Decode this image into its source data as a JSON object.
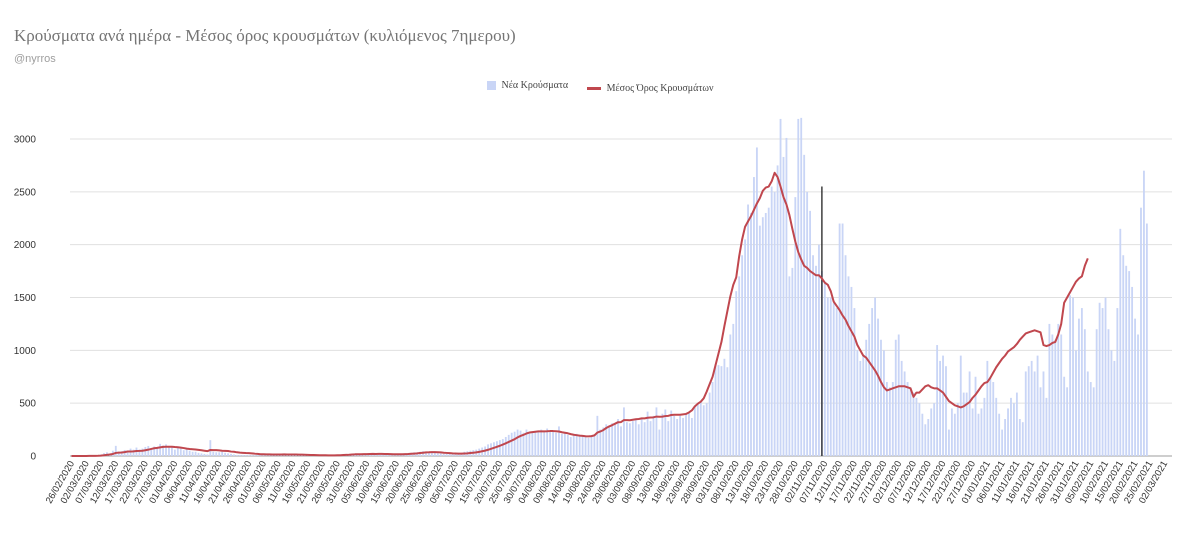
{
  "header": {
    "title": "Κρούσματα ανά ημέρα - Μέσος όρος κρουσμάτων (κυλιόμενος 7ημερου)",
    "subtitle": "@nyrros"
  },
  "colors": {
    "bars": "#c9d5f6",
    "line": "#c0474e",
    "grid": "#e0e0e0",
    "marker": "#222222"
  },
  "chart_data": {
    "type": "bar",
    "title": "Κρούσματα ανά ημέρα - Μέσος όρος κρουσμάτων (κυλιόμενος 7ημερου)",
    "legend_position": "top-center",
    "grid": true,
    "ylim": [
      0,
      3000
    ],
    "yticks": [
      0,
      500,
      1000,
      1500,
      2000,
      2500,
      3000
    ],
    "start_date": "2020-02-26",
    "end_date": "2021-03-04",
    "vertical_marker_date": "2020-11-06",
    "xtick_labels": [
      "26/02/2020",
      "02/03/2020",
      "07/03/2020",
      "12/03/2020",
      "17/03/2020",
      "22/03/2020",
      "27/03/2020",
      "01/04/2020",
      "06/04/2020",
      "11/04/2020",
      "16/04/2020",
      "21/04/2020",
      "26/04/2020",
      "01/05/2020",
      "06/05/2020",
      "11/05/2020",
      "16/05/2020",
      "21/05/2020",
      "26/05/2020",
      "31/05/2020",
      "05/06/2020",
      "10/06/2020",
      "15/06/2020",
      "20/06/2020",
      "25/06/2020",
      "30/06/2020",
      "05/07/2020",
      "10/07/2020",
      "15/07/2020",
      "20/07/2020",
      "25/07/2020",
      "30/07/2020",
      "04/08/2020",
      "09/08/2020",
      "14/08/2020",
      "19/08/2020",
      "24/08/2020",
      "29/08/2020",
      "03/09/2020",
      "08/09/2020",
      "13/09/2020",
      "18/09/2020",
      "23/09/2020",
      "28/09/2020",
      "03/10/2020",
      "08/10/2020",
      "13/10/2020",
      "18/10/2020",
      "23/10/2020",
      "28/10/2020",
      "02/11/2020",
      "07/11/2020",
      "12/11/2020",
      "17/11/2020",
      "22/11/2020",
      "27/11/2020",
      "02/12/2020",
      "07/12/2020",
      "12/12/2020",
      "17/12/2020",
      "22/12/2020",
      "27/12/2020",
      "01/01/2021",
      "06/01/2021",
      "11/01/2021",
      "16/01/2021",
      "21/01/2021",
      "26/01/2021",
      "31/01/2021",
      "05/02/2021",
      "10/02/2021",
      "15/02/2021",
      "20/02/2021",
      "25/02/2021",
      "02/03/2021"
    ],
    "series": [
      {
        "name": "Νέα Κρούσματα",
        "kind": "bar",
        "daily_values_from_start_date": [
          0,
          0,
          1,
          1,
          2,
          0,
          0,
          2,
          4,
          8,
          15,
          27,
          35,
          25,
          50,
          96,
          40,
          45,
          57,
          40,
          70,
          60,
          80,
          60,
          70,
          85,
          95,
          60,
          90,
          85,
          115,
          100,
          110,
          90,
          90,
          60,
          75,
          70,
          55,
          65,
          50,
          40,
          40,
          30,
          25,
          20,
          15,
          150,
          40,
          35,
          35,
          40,
          30,
          25,
          20,
          15,
          10,
          10,
          10,
          10,
          8,
          8,
          8,
          10,
          10,
          10,
          10,
          10,
          15,
          15,
          15,
          15,
          12,
          10,
          10,
          10,
          10,
          10,
          10,
          8,
          8,
          8,
          5,
          5,
          5,
          5,
          5,
          5,
          5,
          5,
          5,
          10,
          15,
          20,
          20,
          20,
          15,
          15,
          20,
          20,
          18,
          20,
          25,
          15,
          20,
          20,
          15,
          18,
          15,
          15,
          15,
          20,
          20,
          20,
          25,
          30,
          35,
          35,
          40,
          45,
          40,
          40,
          30,
          30,
          25,
          25,
          20,
          20,
          25,
          20,
          25,
          30,
          30,
          40,
          45,
          50,
          55,
          60,
          70,
          80,
          90,
          110,
          120,
          130,
          140,
          150,
          160,
          180,
          200,
          220,
          230,
          250,
          240,
          220,
          250,
          230,
          220,
          230,
          240,
          250,
          230,
          260,
          240,
          230,
          220,
          280,
          210,
          220,
          200,
          180,
          200,
          210,
          190,
          190,
          180,
          170,
          180,
          200,
          380,
          250,
          270,
          300,
          280,
          310,
          300,
          350,
          280,
          460,
          320,
          310,
          330,
          350,
          300,
          350,
          320,
          420,
          330,
          380,
          460,
          250,
          400,
          440,
          330,
          430,
          380,
          350,
          380,
          360,
          400,
          410,
          360,
          470,
          500,
          520,
          480,
          500,
          600,
          700,
          870,
          860,
          850,
          920,
          840,
          1150,
          1250,
          1560,
          1700,
          1900,
          2050,
          2380,
          2300,
          2640,
          2920,
          2180,
          2260,
          2300,
          2350,
          2550,
          2500,
          2750,
          3190,
          2830,
          3010,
          1700,
          1780,
          2450,
          3190,
          3200,
          2850,
          2500,
          2320,
          1900,
          1800,
          2000,
          1750,
          1650,
          1500,
          1500,
          1450,
          1400,
          2200,
          2200,
          1900,
          1700,
          1600,
          1400,
          1000,
          900,
          950,
          1100,
          1250,
          1400,
          1500,
          1300,
          1100,
          1000,
          700,
          650,
          700,
          1100,
          1150,
          900,
          800,
          700,
          650,
          600,
          550,
          500,
          400,
          300,
          350,
          450,
          500,
          1050,
          900,
          950,
          850,
          250,
          450,
          400,
          500,
          950,
          600,
          600,
          800,
          450,
          750,
          400,
          450,
          550,
          900,
          750,
          700,
          550,
          400,
          250,
          350,
          450,
          550,
          500,
          600,
          350,
          320,
          800,
          850,
          900,
          800,
          950,
          650,
          800,
          550,
          1250,
          1150,
          1100,
          1250,
          1150,
          750,
          650,
          1520,
          1500,
          1000,
          1300,
          1400,
          1200,
          800,
          700,
          650,
          1200,
          1450,
          1400,
          1500,
          1200,
          1000,
          900,
          1400,
          2150,
          1900,
          1800,
          1750,
          1600,
          1300,
          1150,
          2350,
          2700,
          2200
        ]
      },
      {
        "name": "Μέσος Όρος Κρουσμάτων",
        "kind": "line",
        "daily_values_from_start_date": [
          0,
          0,
          0,
          0,
          0,
          0,
          1,
          1,
          1,
          2,
          4,
          7,
          11,
          14,
          19,
          29,
          32,
          33,
          37,
          43,
          42,
          44,
          47,
          48,
          50,
          54,
          60,
          67,
          73,
          77,
          82,
          86,
          88,
          88,
          88,
          85,
          83,
          79,
          75,
          70,
          66,
          64,
          62,
          58,
          54,
          50,
          46,
          57,
          56,
          56,
          53,
          50,
          49,
          47,
          42,
          40,
          35,
          32,
          30,
          28,
          27,
          25,
          22,
          20,
          17,
          16,
          15,
          15,
          14,
          14,
          14,
          14,
          15,
          14,
          14,
          14,
          14,
          13,
          13,
          12,
          11,
          10,
          9,
          8,
          7,
          7,
          7,
          6,
          6,
          6,
          7,
          7,
          9,
          11,
          12,
          14,
          16,
          16,
          17,
          18,
          18,
          19,
          20,
          19,
          20,
          20,
          19,
          19,
          18,
          17,
          17,
          17,
          17,
          18,
          19,
          21,
          23,
          25,
          28,
          31,
          34,
          35,
          37,
          37,
          36,
          34,
          31,
          29,
          27,
          25,
          24,
          23,
          23,
          24,
          25,
          28,
          31,
          34,
          39,
          45,
          51,
          59,
          68,
          77,
          87,
          97,
          108,
          120,
          133,
          146,
          159,
          176,
          190,
          200,
          213,
          222,
          226,
          230,
          233,
          233,
          233,
          234,
          236,
          236,
          234,
          232,
          225,
          220,
          215,
          207,
          201,
          197,
          193,
          190,
          187,
          186,
          188,
          195,
          222,
          232,
          245,
          265,
          280,
          292,
          306,
          320,
          321,
          340,
          340,
          338,
          343,
          348,
          350,
          356,
          356,
          362,
          364,
          366,
          373,
          371,
          373,
          378,
          380,
          388,
          390,
          390,
          390,
          394,
          398,
          412,
          432,
          470,
          495,
          514,
          546,
          609,
          680,
          750,
          860,
          970,
          1080,
          1230,
          1370,
          1510,
          1620,
          1690,
          1890,
          2050,
          2170,
          2220,
          2270,
          2330,
          2390,
          2440,
          2510,
          2540,
          2550,
          2600,
          2680,
          2640,
          2550,
          2450,
          2380,
          2280,
          2150,
          2030,
          1930,
          1860,
          1800,
          1780,
          1750,
          1730,
          1710,
          1710,
          1680,
          1640,
          1620,
          1560,
          1460,
          1420,
          1380,
          1330,
          1290,
          1230,
          1180,
          1130,
          1050,
          1000,
          950,
          930,
          890,
          850,
          810,
          760,
          700,
          650,
          620,
          630,
          640,
          650,
          660,
          660,
          660,
          650,
          640,
          560,
          600,
          600,
          630,
          660,
          670,
          650,
          640,
          640,
          620,
          600,
          560,
          520,
          500,
          480,
          470,
          460,
          470,
          490,
          510,
          550,
          580,
          620,
          660,
          690,
          700,
          740,
          790,
          840,
          880,
          920,
          950,
          990,
          1010,
          1030,
          1060,
          1100,
          1130,
          1160,
          1170,
          1180,
          1190,
          1180,
          1170,
          1050,
          1040,
          1050,
          1070,
          1080,
          1150,
          1250,
          1450,
          1500,
          1550,
          1600,
          1650,
          1680,
          1700,
          1800,
          1870
        ]
      }
    ]
  },
  "legend": {
    "bars_label": "Νέα Κρούσματα",
    "line_label": "Μέσος Όρος Κρουσμάτων"
  }
}
